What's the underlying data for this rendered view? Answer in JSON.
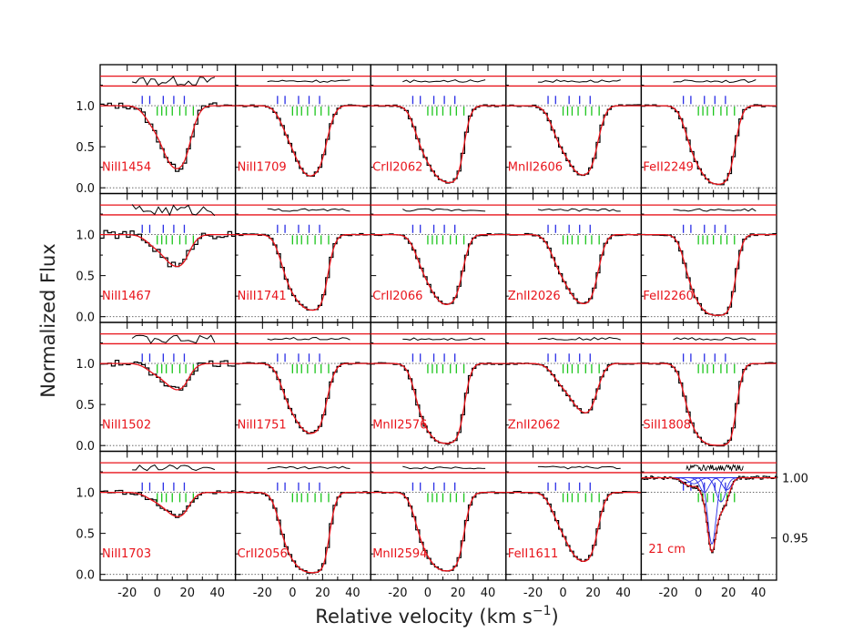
{
  "chart_data": {
    "type": "line",
    "title": "",
    "xlabel": "Relative velocity (km s",
    "xlabel_exp": "−1",
    "xlabel_close": ")",
    "ylabel": "Normalized Flux",
    "xlim": [
      -38,
      52
    ],
    "ylim": [
      -0.07,
      1.5
    ],
    "x_ticks": [
      -20,
      -10,
      0,
      10,
      20,
      30,
      40
    ],
    "x_tick_labels": [
      "-20",
      "0",
      "20",
      "40"
    ],
    "y_ticks": [
      0.0,
      0.5,
      1.0
    ],
    "y_tick_labels": [
      "0.0",
      "0.5",
      "1.0"
    ],
    "right_axis_21cm": {
      "ylim": [
        0.915,
        1.022
      ],
      "ticks": [
        0.95,
        1.0
      ],
      "tick_labels": [
        "0.95",
        "1.00"
      ]
    },
    "component_velocities_blue": [
      -10,
      -5,
      4,
      11,
      18
    ],
    "component_velocities_green": [
      0,
      3,
      6,
      10,
      15,
      19,
      24
    ],
    "residual_band": [
      1.24,
      1.36
    ],
    "grid": {
      "rows": 4,
      "cols": 5
    },
    "panels": [
      {
        "label": "NiII1454",
        "depths": [
          0.08,
          0.22,
          0.45,
          0.55,
          0.5,
          0.2,
          0.05
        ],
        "noise": 0.04
      },
      {
        "label": "NiII1709",
        "depths": [
          0.1,
          0.35,
          0.6,
          0.65,
          0.55,
          0.25,
          0.05
        ],
        "noise": 0.012
      },
      {
        "label": "CrII2062",
        "depths": [
          0.2,
          0.5,
          0.7,
          0.72,
          0.8,
          0.35,
          0.05
        ],
        "noise": 0.012
      },
      {
        "label": "MnII2606",
        "depths": [
          0.12,
          0.4,
          0.55,
          0.62,
          0.6,
          0.28,
          0.05
        ],
        "noise": 0.012
      },
      {
        "label": "FeII2249",
        "depths": [
          0.2,
          0.55,
          0.75,
          0.8,
          0.8,
          0.4,
          0.08
        ],
        "noise": 0.012
      },
      {
        "label": "NiII1467",
        "depths": [
          0.04,
          0.12,
          0.2,
          0.22,
          0.22,
          0.08,
          0.02
        ],
        "noise": 0.05
      },
      {
        "label": "NiII1741",
        "depths": [
          0.15,
          0.55,
          0.7,
          0.7,
          0.75,
          0.3,
          0.05
        ],
        "noise": 0.012
      },
      {
        "label": "CrII2066",
        "depths": [
          0.12,
          0.42,
          0.6,
          0.62,
          0.6,
          0.28,
          0.05
        ],
        "noise": 0.012
      },
      {
        "label": "ZnII2026",
        "depths": [
          0.12,
          0.38,
          0.55,
          0.6,
          0.62,
          0.3,
          0.05
        ],
        "noise": 0.012
      },
      {
        "label": "FeII2260",
        "depths": [
          0.25,
          0.65,
          0.85,
          0.88,
          0.88,
          0.45,
          0.08
        ],
        "noise": 0.012
      },
      {
        "label": "NiII1502",
        "depths": [
          0.03,
          0.1,
          0.15,
          0.18,
          0.18,
          0.06,
          0.01
        ],
        "noise": 0.04
      },
      {
        "label": "NiII1751",
        "depths": [
          0.12,
          0.45,
          0.6,
          0.62,
          0.6,
          0.25,
          0.05
        ],
        "noise": 0.012
      },
      {
        "label": "MnII2576",
        "depths": [
          0.22,
          0.65,
          0.82,
          0.85,
          0.82,
          0.4,
          0.06
        ],
        "noise": 0.012
      },
      {
        "label": "ZnII2062",
        "depths": [
          0.06,
          0.2,
          0.3,
          0.35,
          0.4,
          0.2,
          0.04
        ],
        "noise": 0.012
      },
      {
        "label": "SiII1808",
        "depths": [
          0.3,
          0.72,
          0.9,
          0.95,
          0.95,
          0.5,
          0.1
        ],
        "noise": 0.012
      },
      {
        "label": "NiII1703",
        "depths": [
          0.03,
          0.08,
          0.14,
          0.16,
          0.17,
          0.06,
          0.01
        ],
        "noise": 0.025
      },
      {
        "label": "CrII2056",
        "depths": [
          0.25,
          0.65,
          0.82,
          0.85,
          0.88,
          0.42,
          0.06
        ],
        "noise": 0.012
      },
      {
        "label": "MnII2594",
        "depths": [
          0.2,
          0.6,
          0.78,
          0.8,
          0.78,
          0.38,
          0.06
        ],
        "noise": 0.012
      },
      {
        "label": "FeII1611",
        "depths": [
          0.1,
          0.35,
          0.55,
          0.6,
          0.62,
          0.28,
          0.04
        ],
        "noise": 0.012
      },
      {
        "label": "21 cm",
        "is21cm": true
      }
    ]
  },
  "colors": {
    "axis": "#000000",
    "data": "#000000",
    "fit": "#e8141b",
    "blue_ticks": "#2a2ee6",
    "green_ticks": "#1bc51b",
    "label": "#e8141b",
    "dotted": "#555555"
  }
}
